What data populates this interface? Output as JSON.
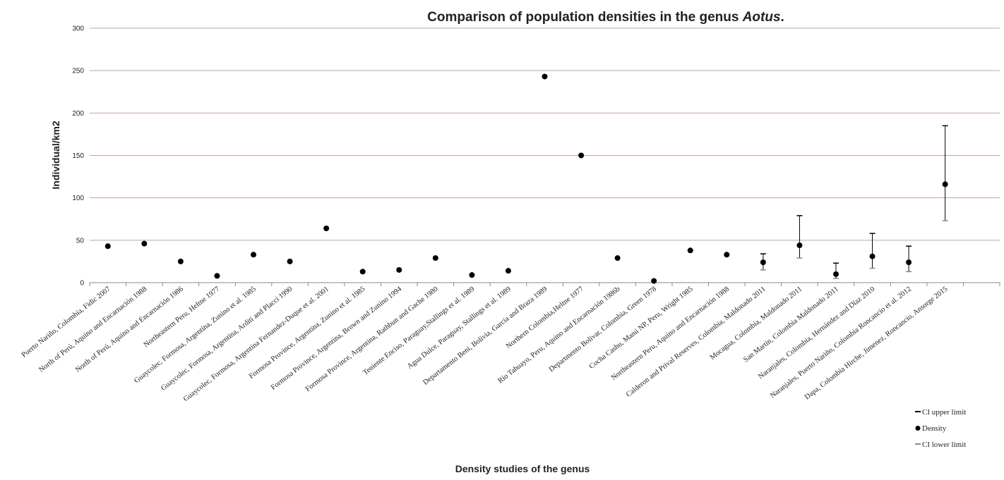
{
  "chart_data": {
    "type": "scatter",
    "title_plain": "Comparison of population densities in the genus ",
    "title_italic": "Aotus",
    "title_end": ".",
    "xlabel": "Density studies of the genus",
    "ylabel": "Individual/km2",
    "ylim": [
      0,
      300
    ],
    "yticks": [
      0,
      50,
      100,
      150,
      200,
      250,
      300
    ],
    "grid": true,
    "legend_position": "bottom-right",
    "colors": {
      "grid": "#c9a0a0",
      "point": "#000000",
      "upper": "#000000",
      "lower": "#888888"
    },
    "legend": [
      {
        "key": "upper",
        "label": "CI upper limit"
      },
      {
        "key": "density",
        "label": "Density"
      },
      {
        "key": "lower",
        "label": "CI lower limit"
      }
    ],
    "categories": [
      "Puerto Nariño, Colombia, Fidic 2007",
      "North of Perú, Aquino and Encarnación 1988",
      "North of Perú, Aquino and Encarnación 1986",
      "Northeastern Peru, Heltne 1977",
      "Guaycolec, Formosa, Argentina, Zunino et al. 1985",
      "Guaycolec, Formosa, Argentina, Arditi and Placci 1990",
      "Guaycolec, Formosa, Argentina Fernandez-Duque et al. 2001",
      "Formosa Province, Argentina, Zunino et al. 1985",
      "Formosa Province, Argentina, Brown and Zunino 1994",
      "Formosa Province, Argentina, Rathbun and Gache 1980",
      "Teniente Enciso, Paraguay,Stallings et al. 1989",
      "Agua Dulce, Paraguay, Stallings et al. 1989",
      "Departamento Beni, Bolivia, Garcia and Braza 1989",
      "Northern Colombia,Heltne 1977",
      "Río Tahuayo, Peru, Aquino and Encarnación 1986b",
      "Departmento Bolivar, Colombia, Green 1978",
      "Cocha Cashu, Manú NP, Peru, Wright 1985",
      "Northeastern Peru, Aquino and Encarnación 1988",
      "Calderon and Prival Reserves, Colombia, Maldonado 2011",
      "Mocagua, Colombia, Maldonado 2011",
      "San Martin, Colombia Maldonado 2011",
      "Naranjales, Colombia, Hernández and Díaz 2010",
      "Naranjales, Puerto Nariño, Colombia Roncancio et al. 2012",
      "Dapa, Colombia Hirche, Jimenez, Roncancio, Ansorge 2015",
      ""
    ],
    "density": [
      43,
      46,
      25,
      8,
      33,
      25,
      64,
      13,
      15,
      29,
      9,
      14,
      243,
      150,
      29,
      2,
      38,
      33,
      24,
      44,
      10,
      31,
      24,
      116,
      null
    ],
    "ci_upper": [
      null,
      null,
      null,
      null,
      null,
      null,
      null,
      null,
      null,
      null,
      null,
      null,
      null,
      null,
      null,
      null,
      null,
      null,
      34,
      79,
      23,
      58,
      43,
      185,
      null
    ],
    "ci_lower": [
      null,
      null,
      null,
      null,
      null,
      null,
      null,
      null,
      null,
      null,
      null,
      null,
      null,
      null,
      null,
      null,
      null,
      null,
      15,
      29,
      5,
      17,
      13,
      73,
      null
    ]
  }
}
